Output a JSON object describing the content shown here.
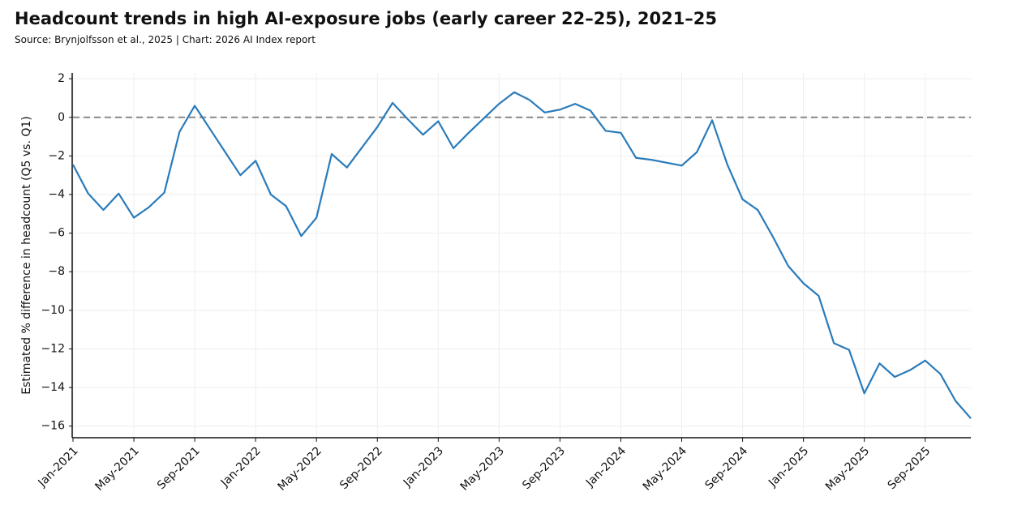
{
  "chart_data": {
    "type": "line",
    "title": "Headcount trends in high AI-exposure jobs (early career 22–25), 2021–25",
    "subtitle": "Source: Brynjolfsson et al., 2025 | Chart: 2026 AI Index report",
    "y_label": "Estimated % difference in headcount (Q5 vs. Q1)",
    "categories": [
      "Jan-2021",
      null,
      null,
      null,
      "May-2021",
      null,
      null,
      null,
      "Sep-2021",
      null,
      null,
      null,
      "Jan-2022",
      null,
      null,
      null,
      "May-2022",
      null,
      null,
      null,
      "Sep-2022",
      null,
      null,
      null,
      "Jan-2023",
      null,
      null,
      null,
      "May-2023",
      null,
      null,
      null,
      "Sep-2023",
      null,
      null,
      null,
      "Jan-2024",
      null,
      null,
      null,
      "May-2024",
      null,
      null,
      null,
      "Sep-2024",
      null,
      null,
      null,
      "Jan-2025",
      null,
      null,
      null,
      "May-2025",
      null,
      null,
      null,
      "Sep-2025",
      null,
      null,
      null
    ],
    "series": [
      {
        "name": "Q5 vs. Q1",
        "color": "#2a7bba",
        "values": [
          -2.45,
          -3.95,
          -4.8,
          -3.95,
          -5.2,
          -4.65,
          -3.9,
          -0.75,
          0.6,
          -0.6,
          -1.8,
          -3.0,
          -2.25,
          -4.0,
          -4.6,
          -6.15,
          -5.2,
          -1.9,
          -2.6,
          -1.55,
          -0.5,
          0.75,
          -0.1,
          -0.9,
          -0.2,
          -1.6,
          -0.8,
          -0.05,
          0.7,
          1.3,
          0.9,
          0.25,
          0.4,
          0.7,
          0.35,
          -0.7,
          -0.8,
          -2.1,
          -2.2,
          -2.35,
          -2.5,
          -1.8,
          -0.15,
          -2.45,
          -4.25,
          -4.8,
          -6.2,
          -7.7,
          -8.6,
          -9.25,
          -11.7,
          -12.05,
          -14.3,
          -12.75,
          -13.45,
          -13.1,
          -12.6,
          -13.3,
          -14.7,
          -15.6
        ]
      }
    ],
    "reference_line": 0,
    "ylim": [
      -16.6,
      2.3
    ],
    "yticks": [
      2,
      0,
      {
        "value": -2,
        "label": "−2"
      },
      {
        "value": -4,
        "label": "−4"
      },
      {
        "value": -6,
        "label": "−6"
      },
      {
        "value": -8,
        "label": "−8"
      },
      {
        "value": -10,
        "label": "−10"
      },
      {
        "value": -12,
        "label": "−12"
      },
      {
        "value": -14,
        "label": "−14"
      },
      {
        "value": -16,
        "label": "−16"
      }
    ],
    "grid": true
  }
}
